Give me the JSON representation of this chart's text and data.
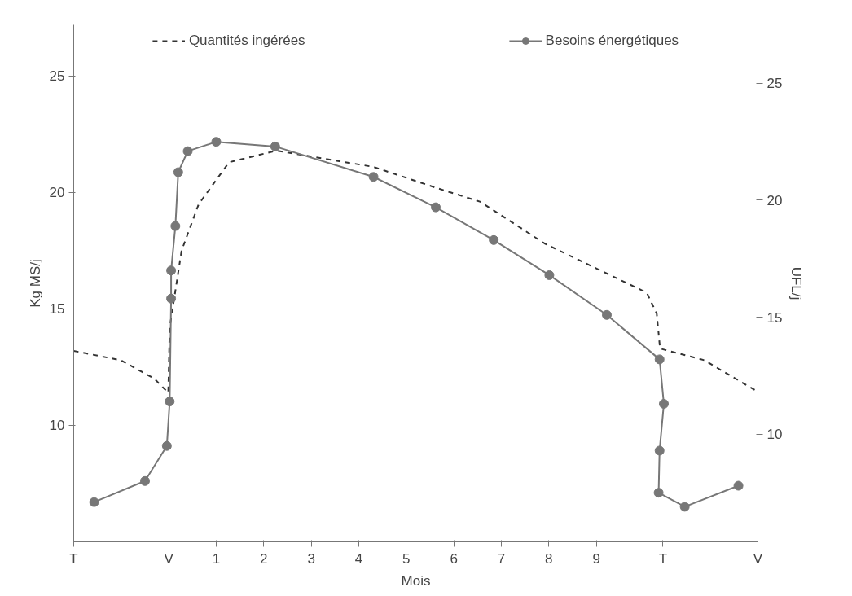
{
  "chart_data": {
    "type": "line",
    "xlabel": "Mois",
    "ylabel": "Kg MS/j",
    "y2label": "UFL/j",
    "xlim": [
      -2,
      12.4
    ],
    "xticks": [
      {
        "value": -2,
        "label": "T"
      },
      {
        "value": 0,
        "label": "V"
      },
      1,
      2,
      3,
      4,
      5,
      6,
      7,
      8,
      9,
      {
        "value": 10.4,
        "label": "T"
      },
      {
        "value": 12.4,
        "label": "V"
      }
    ],
    "ylim": [
      5,
      27.2
    ],
    "yticks": [
      10,
      15,
      20,
      25
    ],
    "y2lim": [
      5.4,
      27.5
    ],
    "y2ticks": [
      10,
      15,
      20,
      25
    ],
    "grid": false,
    "legend": "top",
    "series": [
      {
        "name": "Quantités ingérées",
        "color": "#333333",
        "line_style": "dashed",
        "marker": "none",
        "x": [
          -2,
          -1.01,
          -0.3,
          -0.01,
          0.02,
          0.27,
          0.63,
          1.27,
          2.27,
          4.31,
          5.63,
          6.56,
          7.92,
          10.06,
          10.27,
          10.34,
          11.27,
          12.35
        ],
        "values": [
          13.2,
          12.8,
          12.0,
          11.4,
          14.2,
          17.5,
          19.5,
          21.3,
          21.8,
          21.1,
          20.2,
          19.6,
          17.8,
          15.7,
          14.8,
          13.3,
          12.8,
          11.5
        ]
      },
      {
        "name": "Besoins énergétiques",
        "color": "#777777",
        "axis": "y2",
        "line_style": "solid",
        "marker": "circle",
        "x": [
          -1.57,
          -0.5,
          -0.04,
          0.02,
          0.05,
          0.05,
          0.14,
          0.2,
          0.4,
          1.0,
          2.24,
          4.31,
          5.62,
          6.84,
          8.01,
          9.22,
          10.33,
          10.42,
          10.33,
          10.31,
          10.86,
          11.99
        ],
        "values": [
          7.1,
          8.0,
          9.5,
          11.4,
          15.8,
          17.0,
          18.9,
          21.2,
          22.1,
          22.5,
          22.3,
          21.0,
          19.7,
          18.3,
          16.8,
          15.1,
          13.2,
          11.3,
          9.3,
          7.5,
          6.9,
          7.8
        ]
      }
    ]
  }
}
